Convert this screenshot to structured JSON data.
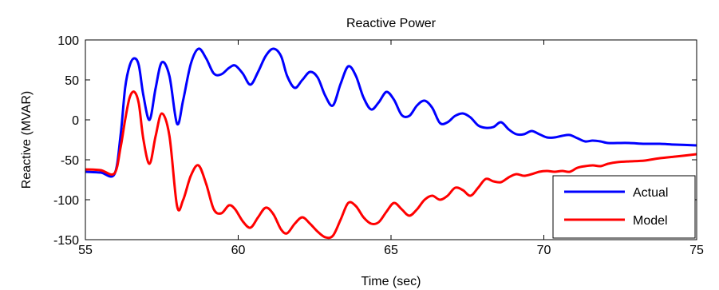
{
  "chart_data": {
    "type": "line",
    "title": "Reactive Power",
    "xlabel": "Time (sec)",
    "ylabel": "Reactive (MVAR)",
    "xlim": [
      55,
      75
    ],
    "ylim": [
      -150,
      100
    ],
    "xticks": [
      "55",
      "60",
      "65",
      "70",
      "75"
    ],
    "yticks": [
      "100",
      "50",
      "0",
      "-50",
      "-100",
      "-150"
    ],
    "grid": false,
    "legend_position": "bottom-right",
    "series": [
      {
        "name": "Actual",
        "color": "#0000ff",
        "x": [
          55,
          55.5,
          55.95,
          56.15,
          56.3,
          56.45,
          56.6,
          56.75,
          56.9,
          57.1,
          57.3,
          57.5,
          57.75,
          58.0,
          58.2,
          58.45,
          58.7,
          58.95,
          59.2,
          59.45,
          59.7,
          59.9,
          60.15,
          60.4,
          60.65,
          60.9,
          61.15,
          61.4,
          61.6,
          61.85,
          62.1,
          62.35,
          62.6,
          62.85,
          63.1,
          63.35,
          63.6,
          63.85,
          64.1,
          64.35,
          64.6,
          64.85,
          65.1,
          65.35,
          65.6,
          65.85,
          66.1,
          66.35,
          66.6,
          66.85,
          67.1,
          67.35,
          67.6,
          67.85,
          68.1,
          68.35,
          68.6,
          68.85,
          69.1,
          69.35,
          69.6,
          69.85,
          70.1,
          70.35,
          70.6,
          70.85,
          71.1,
          71.35,
          71.6,
          71.85,
          72.1,
          72.4,
          72.8,
          73.3,
          73.8,
          74.3,
          75
        ],
        "y": [
          -65,
          -66,
          -68,
          -20,
          40,
          68,
          77,
          68,
          30,
          0,
          40,
          72,
          55,
          -5,
          25,
          70,
          89,
          77,
          58,
          57,
          65,
          68,
          58,
          44,
          60,
          80,
          89,
          80,
          55,
          40,
          50,
          60,
          53,
          30,
          18,
          45,
          67,
          55,
          28,
          13,
          22,
          35,
          25,
          6,
          5,
          18,
          24,
          15,
          -4,
          -3,
          5,
          8,
          3,
          -7,
          -10,
          -9,
          -3,
          -12,
          -18,
          -18,
          -14,
          -18,
          -22,
          -22,
          -20,
          -19,
          -23,
          -27,
          -26,
          -27,
          -29,
          -29,
          -29,
          -30,
          -30,
          -31,
          -32
        ]
      },
      {
        "name": "Model",
        "color": "#ff0000",
        "x": [
          55,
          55.5,
          55.95,
          56.15,
          56.3,
          56.45,
          56.6,
          56.75,
          56.9,
          57.1,
          57.3,
          57.5,
          57.75,
          58.0,
          58.2,
          58.45,
          58.7,
          58.95,
          59.2,
          59.45,
          59.7,
          59.9,
          60.15,
          60.4,
          60.65,
          60.9,
          61.15,
          61.4,
          61.6,
          61.85,
          62.1,
          62.35,
          62.6,
          62.85,
          63.1,
          63.35,
          63.6,
          63.85,
          64.1,
          64.35,
          64.6,
          64.85,
          65.1,
          65.35,
          65.6,
          65.85,
          66.1,
          66.35,
          66.6,
          66.85,
          67.1,
          67.35,
          67.6,
          67.85,
          68.1,
          68.35,
          68.6,
          68.85,
          69.1,
          69.35,
          69.6,
          69.85,
          70.1,
          70.35,
          70.6,
          70.85,
          71.1,
          71.35,
          71.6,
          71.85,
          72.1,
          72.4,
          72.8,
          73.3,
          73.8,
          74.3,
          75
        ],
        "y": [
          -62,
          -63,
          -67,
          -35,
          0,
          28,
          35,
          20,
          -25,
          -55,
          -20,
          8,
          -20,
          -108,
          -100,
          -70,
          -57,
          -80,
          -112,
          -117,
          -107,
          -112,
          -127,
          -135,
          -122,
          -110,
          -118,
          -137,
          -142,
          -130,
          -122,
          -130,
          -140,
          -147,
          -145,
          -125,
          -104,
          -108,
          -122,
          -130,
          -128,
          -115,
          -104,
          -112,
          -120,
          -112,
          -100,
          -95,
          -100,
          -95,
          -85,
          -88,
          -95,
          -85,
          -74,
          -77,
          -78,
          -72,
          -68,
          -70,
          -68,
          -65,
          -64,
          -65,
          -64,
          -65,
          -60,
          -58,
          -57,
          -58,
          -55,
          -53,
          -52,
          -51,
          -48,
          -46,
          -43
        ]
      }
    ]
  }
}
